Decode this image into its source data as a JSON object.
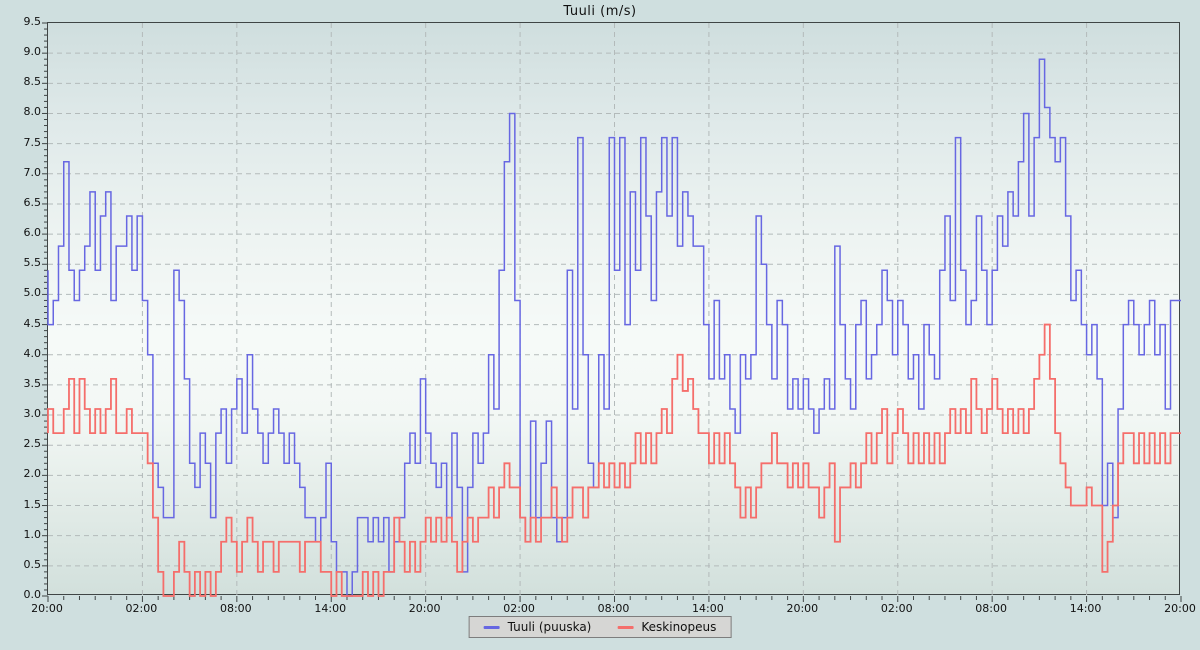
{
  "page": {
    "background": "#cfdfdf"
  },
  "chart_data": {
    "type": "line",
    "subtype": "step",
    "title": "Tuuli (m/s)",
    "xlabel": "",
    "ylabel": "",
    "ylim": [
      0,
      9.5
    ],
    "y_tick_step": 0.5,
    "y_minor_step": 0.1,
    "y_tick_labels": [
      "0.0",
      "0.5",
      "1.0",
      "1.5",
      "2.0",
      "2.5",
      "3.0",
      "3.5",
      "4.0",
      "4.5",
      "5.0",
      "5.5",
      "6.0",
      "6.5",
      "7.0",
      "7.5",
      "8.0",
      "8.5",
      "9.0",
      "9.5"
    ],
    "x_hours_total": 72,
    "points_per_hour": 3,
    "x_major_step_hours": 6,
    "x_minor_step_hours": 1,
    "x_tick_labels": [
      "20:00",
      "02:00",
      "08:00",
      "14:00",
      "20:00",
      "02:00",
      "08:00",
      "14:00",
      "20:00",
      "02:00",
      "08:00",
      "14:00",
      "20:00"
    ],
    "grid": "dashed",
    "legend_position": "bottom",
    "colors": {
      "grid": "#b3baba",
      "axis": "#3f4545",
      "tick_label": "#111111",
      "legend_bg": "#d6d6d4",
      "legend_border": "#7d7d7d"
    },
    "series": [
      {
        "name": "Tuuli (puuska)",
        "color": "#6767e2",
        "stroke_width": 1.5,
        "values": [
          5.4,
          4.5,
          4.9,
          5.8,
          7.2,
          5.4,
          4.9,
          5.4,
          5.8,
          6.7,
          5.4,
          6.3,
          6.7,
          4.9,
          5.8,
          5.8,
          6.3,
          5.4,
          6.3,
          4.9,
          4.0,
          2.2,
          1.8,
          1.3,
          1.3,
          5.4,
          4.9,
          3.6,
          2.2,
          1.8,
          2.7,
          2.2,
          1.3,
          2.7,
          3.1,
          2.2,
          3.1,
          3.6,
          2.7,
          4.0,
          3.1,
          2.7,
          2.2,
          2.7,
          3.1,
          2.7,
          2.2,
          2.7,
          2.2,
          1.8,
          1.3,
          1.3,
          0.9,
          1.3,
          2.2,
          0.9,
          0.4,
          0.4,
          0.0,
          0.4,
          1.3,
          1.3,
          0.9,
          1.3,
          0.9,
          1.3,
          0.4,
          0.9,
          1.3,
          2.2,
          2.7,
          2.2,
          3.6,
          2.7,
          2.2,
          1.8,
          2.2,
          1.3,
          2.7,
          1.8,
          0.4,
          1.8,
          2.7,
          2.2,
          2.7,
          4.0,
          3.1,
          5.4,
          7.2,
          8.0,
          4.9,
          1.3,
          0.9,
          2.9,
          1.3,
          2.2,
          2.9,
          1.3,
          0.9,
          1.3,
          5.4,
          3.1,
          7.6,
          4.0,
          2.2,
          1.8,
          4.0,
          3.1,
          7.6,
          5.4,
          7.6,
          4.5,
          6.7,
          5.4,
          7.6,
          6.3,
          4.9,
          6.7,
          7.6,
          6.3,
          7.6,
          5.8,
          6.7,
          6.3,
          5.8,
          5.8,
          4.5,
          3.6,
          4.9,
          3.6,
          4.0,
          3.1,
          2.7,
          4.0,
          3.6,
          4.0,
          6.3,
          5.5,
          4.5,
          3.6,
          4.9,
          4.5,
          3.1,
          3.6,
          3.1,
          3.6,
          3.1,
          2.7,
          3.1,
          3.6,
          3.1,
          5.8,
          4.5,
          3.6,
          3.1,
          4.5,
          4.9,
          3.6,
          4.0,
          4.5,
          5.4,
          4.9,
          4.0,
          4.9,
          4.5,
          3.6,
          4.0,
          3.1,
          4.5,
          4.0,
          3.6,
          5.4,
          6.3,
          4.9,
          7.6,
          5.4,
          4.5,
          4.9,
          6.3,
          5.4,
          4.5,
          5.4,
          6.3,
          5.8,
          6.7,
          6.3,
          7.2,
          8.0,
          6.3,
          7.6,
          8.9,
          8.1,
          7.6,
          7.2,
          7.6,
          6.3,
          4.9,
          5.4,
          4.5,
          4.0,
          4.5,
          3.6,
          1.5,
          2.2,
          1.3,
          3.1,
          4.5,
          4.9,
          4.5,
          4.0,
          4.5,
          4.9,
          4.0,
          4.5,
          3.1,
          4.9,
          4.9
        ]
      },
      {
        "name": "Keskinopeus",
        "color": "#f56e6b",
        "stroke_width": 1.8,
        "values": [
          2.7,
          3.1,
          2.7,
          2.7,
          3.1,
          3.6,
          2.7,
          3.6,
          3.1,
          2.7,
          3.1,
          2.7,
          3.1,
          3.6,
          2.7,
          2.7,
          3.1,
          2.7,
          2.7,
          2.7,
          2.2,
          1.3,
          0.4,
          0.0,
          0.0,
          0.4,
          0.9,
          0.4,
          0.0,
          0.4,
          0.0,
          0.4,
          0.0,
          0.4,
          0.9,
          1.3,
          0.9,
          0.4,
          0.9,
          1.3,
          0.9,
          0.4,
          0.9,
          0.9,
          0.4,
          0.9,
          0.9,
          0.9,
          0.9,
          0.4,
          0.9,
          0.9,
          0.9,
          0.4,
          0.4,
          0.0,
          0.4,
          0.0,
          0.0,
          0.0,
          0.0,
          0.4,
          0.0,
          0.4,
          0.0,
          0.4,
          0.4,
          1.3,
          0.9,
          0.4,
          0.9,
          0.4,
          0.9,
          1.3,
          0.9,
          1.3,
          0.9,
          1.3,
          0.9,
          0.4,
          0.9,
          1.3,
          0.9,
          1.3,
          1.3,
          1.8,
          1.3,
          1.8,
          2.2,
          1.8,
          1.8,
          1.3,
          0.9,
          1.3,
          0.9,
          1.3,
          1.3,
          1.8,
          1.3,
          0.9,
          1.3,
          1.8,
          1.8,
          1.3,
          1.8,
          1.8,
          2.2,
          1.8,
          2.2,
          1.8,
          2.2,
          1.8,
          2.2,
          2.7,
          2.2,
          2.7,
          2.2,
          2.7,
          3.1,
          2.7,
          3.6,
          4.0,
          3.4,
          3.6,
          3.1,
          2.7,
          2.7,
          2.2,
          2.7,
          2.2,
          2.7,
          2.2,
          1.8,
          1.3,
          1.8,
          1.3,
          1.8,
          2.2,
          2.2,
          2.7,
          2.2,
          2.2,
          1.8,
          2.2,
          1.8,
          2.2,
          1.8,
          1.8,
          1.3,
          1.8,
          2.2,
          0.9,
          1.8,
          1.8,
          2.2,
          1.8,
          2.2,
          2.7,
          2.2,
          2.7,
          3.1,
          2.2,
          2.7,
          3.1,
          2.7,
          2.2,
          2.7,
          2.2,
          2.7,
          2.2,
          2.7,
          2.2,
          2.7,
          3.1,
          2.7,
          3.1,
          2.7,
          3.6,
          3.1,
          2.7,
          3.1,
          3.6,
          3.1,
          2.7,
          3.1,
          2.7,
          3.1,
          2.7,
          3.1,
          3.6,
          4.0,
          4.5,
          3.6,
          2.7,
          2.2,
          1.8,
          1.5,
          1.5,
          1.5,
          1.8,
          1.5,
          1.5,
          0.4,
          0.9,
          1.5,
          2.2,
          2.7,
          2.7,
          2.2,
          2.7,
          2.2,
          2.7,
          2.2,
          2.7,
          2.2,
          2.7,
          2.7
        ]
      }
    ]
  },
  "legend": {
    "items": [
      {
        "label": "Tuuli (puuska)"
      },
      {
        "label": "Keskinopeus"
      }
    ]
  }
}
